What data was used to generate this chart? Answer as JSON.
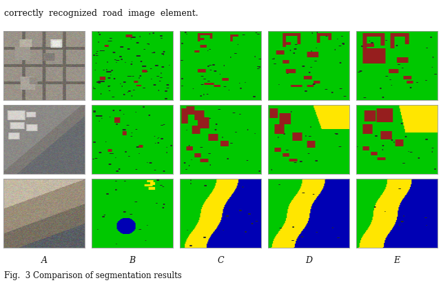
{
  "title_text": "Fig.  3 Comparison of segmentation results",
  "col_labels": [
    "A",
    "B",
    "C",
    "D",
    "E"
  ],
  "background_color": "#ffffff",
  "fig_width": 6.4,
  "fig_height": 4.27,
  "GREEN": [
    0,
    200,
    0
  ],
  "DARK_RED": [
    150,
    30,
    30
  ],
  "YELLOW": [
    255,
    230,
    0
  ],
  "BLUE": [
    0,
    0,
    180
  ],
  "MARK": [
    40,
    40,
    40
  ]
}
